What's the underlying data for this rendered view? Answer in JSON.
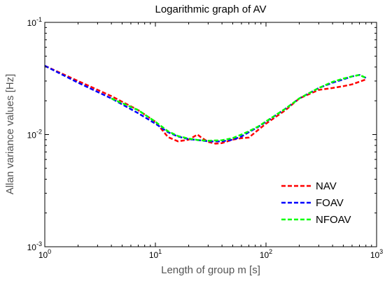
{
  "chart_data": {
    "type": "line",
    "title": "Logarithmic graph of AV",
    "xlabel": "Length of group m [s]",
    "ylabel": "Allan variance values [Hz]",
    "xscale": "log",
    "yscale": "log",
    "xlim": [
      1,
      1000
    ],
    "ylim": [
      0.001,
      0.1
    ],
    "grid": false,
    "legend_position": "bottom-right",
    "x_ticks": [
      {
        "value": 1,
        "base": "10",
        "exp": "0"
      },
      {
        "value": 10,
        "base": "10",
        "exp": "1"
      },
      {
        "value": 100,
        "base": "10",
        "exp": "2"
      },
      {
        "value": 1000,
        "base": "10",
        "exp": "3"
      }
    ],
    "y_ticks": [
      {
        "value": 0.001,
        "base": "10",
        "exp": "-3"
      },
      {
        "value": 0.01,
        "base": "10",
        "exp": "-2"
      },
      {
        "value": 0.1,
        "base": "10",
        "exp": "-1"
      }
    ],
    "series": [
      {
        "name": "NAV",
        "color": "#ff0000",
        "x": [
          1,
          2,
          4,
          7,
          10,
          13,
          16,
          20,
          24,
          26,
          30,
          35,
          40,
          50,
          60,
          70,
          85,
          100,
          150,
          200,
          300,
          400,
          500,
          600,
          800
        ],
        "y": [
          0.041,
          0.03,
          0.022,
          0.0165,
          0.013,
          0.0095,
          0.0087,
          0.009,
          0.01,
          0.0094,
          0.0086,
          0.0083,
          0.0084,
          0.009,
          0.0093,
          0.0094,
          0.011,
          0.0125,
          0.0165,
          0.021,
          0.025,
          0.026,
          0.027,
          0.028,
          0.031
        ]
      },
      {
        "name": "FOAV",
        "color": "#0000ff",
        "x": [
          1,
          2,
          4,
          7,
          10,
          13,
          16,
          20,
          25,
          30,
          40,
          50,
          60,
          70,
          85,
          100,
          150,
          200,
          300,
          400,
          500,
          600,
          700,
          800
        ],
        "y": [
          0.041,
          0.029,
          0.021,
          0.0155,
          0.0125,
          0.0105,
          0.0096,
          0.0091,
          0.0089,
          0.0087,
          0.0087,
          0.009,
          0.0096,
          0.0105,
          0.0117,
          0.013,
          0.017,
          0.021,
          0.026,
          0.029,
          0.031,
          0.033,
          0.034,
          0.032
        ]
      },
      {
        "name": "NFOAV",
        "color": "#00ff00",
        "x": [
          4,
          7,
          10,
          13,
          16,
          20,
          25,
          30,
          40,
          50,
          60,
          70,
          85,
          100,
          150,
          200,
          300,
          400,
          500,
          600,
          700,
          800
        ],
        "y": [
          0.021,
          0.0165,
          0.013,
          0.0107,
          0.0097,
          0.0092,
          0.0089,
          0.0088,
          0.0089,
          0.0093,
          0.01,
          0.0107,
          0.0118,
          0.0131,
          0.017,
          0.021,
          0.026,
          0.0295,
          0.0315,
          0.033,
          0.034,
          0.032
        ]
      }
    ]
  }
}
